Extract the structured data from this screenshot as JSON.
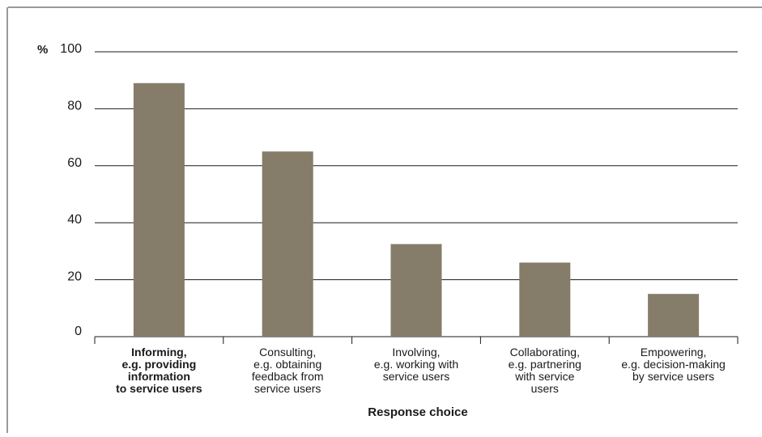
{
  "chart_data": {
    "type": "bar",
    "title": "",
    "ylabel": "%",
    "xlabel": "Response choice",
    "ylim": [
      0,
      100
    ],
    "yticks": [
      "0",
      "20",
      "40",
      "60",
      "80",
      "100"
    ],
    "grid": true,
    "categories": [
      [
        "Informing,",
        "e.g. providing",
        "information",
        "to service users"
      ],
      [
        "Consulting,",
        "e.g. obtaining",
        "feedback from",
        "service users"
      ],
      [
        "Involving,",
        "e.g. working with",
        "service users"
      ],
      [
        "Collaborating,",
        "e.g. partnering",
        "with service",
        "users"
      ],
      [
        "Empowering,",
        "e.g. decision-making",
        "by service users"
      ]
    ],
    "values": [
      89,
      65,
      32.5,
      26,
      15
    ],
    "bar_color": "#857c6a",
    "grid_color": "#1a1a1a"
  }
}
